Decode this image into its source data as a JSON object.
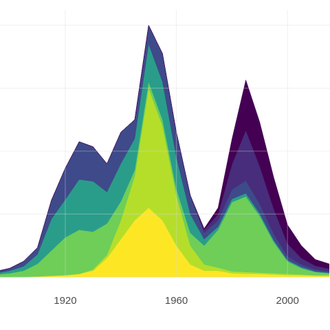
{
  "chart_data": {
    "type": "stacked-area",
    "x": [
      1895,
      1900,
      1905,
      1910,
      1915,
      1920,
      1925,
      1930,
      1935,
      1940,
      1945,
      1950,
      1955,
      1960,
      1965,
      1970,
      1975,
      1980,
      1985,
      1990,
      1995,
      2000,
      2005,
      2010,
      2015
    ],
    "series": [
      {
        "color": "#fde725",
        "values": [
          0,
          0,
          0,
          0.01,
          0.02,
          0.03,
          0.05,
          0.1,
          0.3,
          0.6,
          0.9,
          1.1,
          0.9,
          0.5,
          0.2,
          0.1,
          0.1,
          0.06,
          0.05,
          0.05,
          0.04,
          0.03,
          0.03,
          0.02,
          0.02
        ]
      },
      {
        "color": "#b5de2b",
        "values": [
          0,
          0,
          0,
          0,
          0,
          0,
          0,
          0.02,
          0.05,
          0.3,
          0.7,
          1.9,
          1.5,
          0.8,
          0.3,
          0.1,
          0.05,
          0.03,
          0.03,
          0.02,
          0.02,
          0.02,
          0.01,
          0.01,
          0.01
        ]
      },
      {
        "color": "#6ece58",
        "values": [
          0.04,
          0.06,
          0.1,
          0.2,
          0.4,
          0.6,
          0.7,
          0.6,
          0.5,
          0.3,
          0.1,
          0.1,
          0.1,
          0.1,
          0.2,
          0.3,
          0.6,
          1.1,
          1.2,
          0.9,
          0.5,
          0.2,
          0.1,
          0.05,
          0.03
        ]
      },
      {
        "color": "#2a9d8a",
        "values": [
          0.02,
          0.04,
          0.07,
          0.15,
          0.5,
          0.6,
          0.8,
          0.8,
          0.5,
          0.6,
          0.5,
          0.6,
          0.6,
          0.5,
          0.3,
          0.1,
          0.05,
          0.05,
          0.05,
          0.04,
          0.03,
          0.02,
          0.02,
          0.01,
          0.01
        ]
      },
      {
        "color": "#3e4a89",
        "values": [
          0.03,
          0.04,
          0.08,
          0.11,
          0.3,
          0.5,
          0.6,
          0.55,
          0.45,
          0.5,
          0.3,
          0.3,
          0.45,
          0.4,
          0.3,
          0.1,
          0.1,
          0.15,
          0.2,
          0.15,
          0.1,
          0.06,
          0.04,
          0.03,
          0.02
        ]
      },
      {
        "color": "#472d7b",
        "values": [
          0,
          0,
          0,
          0,
          0,
          0,
          0,
          0,
          0,
          0,
          0,
          0,
          0,
          0,
          0,
          0.05,
          0.1,
          0.4,
          0.8,
          0.6,
          0.4,
          0.2,
          0.1,
          0.06,
          0.04
        ]
      },
      {
        "color": "#440154",
        "values": [
          0,
          0,
          0,
          0,
          0,
          0,
          0,
          0,
          0,
          0,
          0,
          0,
          0,
          0,
          0,
          0.02,
          0.1,
          0.4,
          0.8,
          0.7,
          0.5,
          0.3,
          0.2,
          0.1,
          0.08
        ]
      }
    ],
    "xlim": [
      1896.5,
      2015.3
    ],
    "xticks": [
      1920,
      1960,
      2000
    ],
    "ylim": [
      0,
      4.4
    ],
    "yticks": [
      0,
      1,
      2,
      3,
      4
    ],
    "grid": true
  }
}
